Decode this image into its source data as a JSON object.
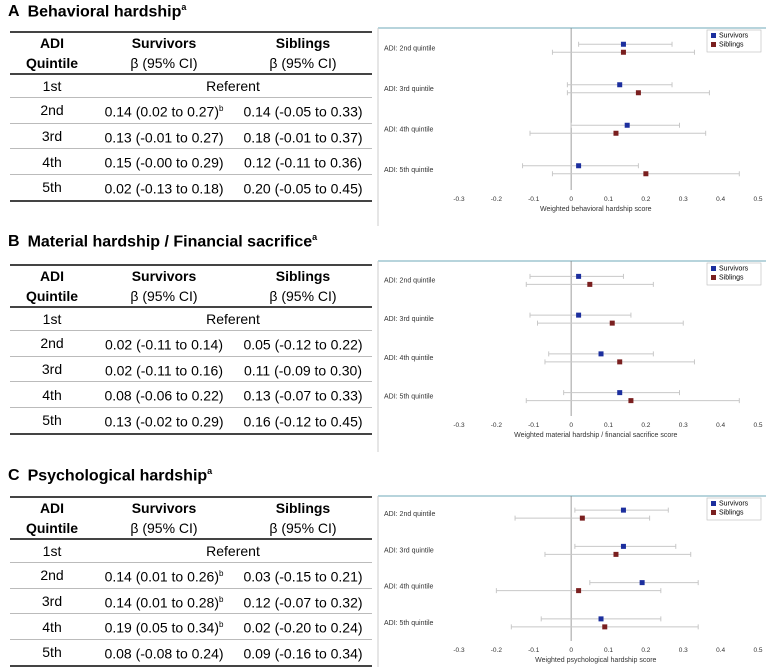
{
  "panels": [
    {
      "letter": "A",
      "title": "Behavioral hardship",
      "sup": "a",
      "table": {
        "col1": [
          "ADI",
          "Quintile"
        ],
        "col2": [
          "Survivors",
          "β (95% CI)"
        ],
        "col3": [
          "Siblings",
          "β (95% CI)"
        ],
        "referent_row": {
          "q": "1st",
          "text": "Referent"
        },
        "rows": [
          {
            "q": "2nd",
            "surv": "0.14 (0.02 to 0.27)",
            "surv_sup": "b",
            "sib": "0.14 (-0.05 to 0.33)",
            "sib_sup": ""
          },
          {
            "q": "3rd",
            "surv": "0.13 (-0.01 to 0.27)",
            "surv_sup": "",
            "sib": "0.18 (-0.01 to 0.37)",
            "sib_sup": ""
          },
          {
            "q": "4th",
            "surv": "0.15 (-0.00 to 0.29)",
            "surv_sup": "",
            "sib": "0.12 (-0.11 to 0.36)",
            "sib_sup": ""
          },
          {
            "q": "5th",
            "surv": "0.02 (-0.13 to 0.18)",
            "surv_sup": "",
            "sib": "0.20 (-0.05 to 0.45)",
            "sib_sup": ""
          }
        ]
      }
    },
    {
      "letter": "B",
      "title": "Material hardship / Financial sacrifice",
      "sup": "a",
      "table": {
        "col1": [
          "ADI",
          "Quintile"
        ],
        "col2": [
          "Survivors",
          "β (95% CI)"
        ],
        "col3": [
          "Siblings",
          "β (95% CI)"
        ],
        "referent_row": {
          "q": "1st",
          "text": "Referent"
        },
        "rows": [
          {
            "q": "2nd",
            "surv": "0.02 (-0.11 to 0.14)",
            "surv_sup": "",
            "sib": "0.05 (-0.12 to 0.22)",
            "sib_sup": ""
          },
          {
            "q": "3rd",
            "surv": "0.02 (-0.11 to 0.16)",
            "surv_sup": "",
            "sib": "0.11 (-0.09 to 0.30)",
            "sib_sup": ""
          },
          {
            "q": "4th",
            "surv": "0.08 (-0.06 to 0.22)",
            "surv_sup": "",
            "sib": "0.13 (-0.07 to 0.33)",
            "sib_sup": ""
          },
          {
            "q": "5th",
            "surv": "0.13 (-0.02 to 0.29)",
            "surv_sup": "",
            "sib": "0.16 (-0.12 to 0.45)",
            "sib_sup": ""
          }
        ]
      }
    },
    {
      "letter": "C",
      "title": "Psychological hardship",
      "sup": "a",
      "table": {
        "col1": [
          "ADI",
          "Quintile"
        ],
        "col2": [
          "Survivors",
          "β (95% CI)"
        ],
        "col3": [
          "Siblings",
          "β (95% CI)"
        ],
        "referent_row": {
          "q": "1st",
          "text": "Referent"
        },
        "rows": [
          {
            "q": "2nd",
            "surv": "0.14 (0.01 to 0.26)",
            "surv_sup": "b",
            "sib": "0.03 (-0.15 to 0.21)",
            "sib_sup": ""
          },
          {
            "q": "3rd",
            "surv": "0.14 (0.01 to 0.28)",
            "surv_sup": "b",
            "sib": "0.12 (-0.07 to 0.32)",
            "sib_sup": ""
          },
          {
            "q": "4th",
            "surv": "0.19 (0.05 to 0.34)",
            "surv_sup": "b",
            "sib": "0.02 (-0.20 to 0.24)",
            "sib_sup": ""
          },
          {
            "q": "5th",
            "surv": "0.08 (-0.08 to 0.24)",
            "surv_sup": "",
            "sib": "0.09 (-0.16 to 0.34)",
            "sib_sup": ""
          }
        ]
      }
    }
  ],
  "chart_data": [
    {
      "type": "scatter",
      "subtype": "forest",
      "panel": "A",
      "xlabel": "Weighted behavioral hardship score",
      "xlim": [
        -0.3,
        0.5
      ],
      "xticks": [
        "-0.3",
        "-0.2",
        "-0.1",
        "0",
        "0.1",
        "0.2",
        "0.3",
        "0.4",
        "0.5"
      ],
      "reference_line": 0,
      "categories": [
        "ADI: 2nd quintile",
        "ADI: 3rd quintile",
        "ADI: 4th quintile",
        "ADI: 5th quintile"
      ],
      "legend": "top-right",
      "series": [
        {
          "name": "Survivors",
          "color": "#1c2f9e",
          "est": [
            0.14,
            0.13,
            0.15,
            0.02
          ],
          "lo": [
            0.02,
            -0.01,
            -0.0,
            -0.13
          ],
          "hi": [
            0.27,
            0.27,
            0.29,
            0.18
          ]
        },
        {
          "name": "Siblings",
          "color": "#7a1f1f",
          "est": [
            0.14,
            0.18,
            0.12,
            0.2
          ],
          "lo": [
            -0.05,
            -0.01,
            -0.11,
            -0.05
          ],
          "hi": [
            0.33,
            0.37,
            0.36,
            0.45
          ]
        }
      ]
    },
    {
      "type": "scatter",
      "subtype": "forest",
      "panel": "B",
      "xlabel": "Weighted material hardship / financial sacrifice score",
      "xlim": [
        -0.3,
        0.5
      ],
      "xticks": [
        "-0.3",
        "-0.2",
        "-0.1",
        "0",
        "0.1",
        "0.2",
        "0.3",
        "0.4",
        "0.5"
      ],
      "reference_line": 0,
      "categories": [
        "ADI: 2nd quintile",
        "ADI: 3rd quintile",
        "ADI: 4th quintile",
        "ADI: 5th quintile"
      ],
      "legend": "top-right",
      "series": [
        {
          "name": "Survivors",
          "color": "#1c2f9e",
          "est": [
            0.02,
            0.02,
            0.08,
            0.13
          ],
          "lo": [
            -0.11,
            -0.11,
            -0.06,
            -0.02
          ],
          "hi": [
            0.14,
            0.16,
            0.22,
            0.29
          ]
        },
        {
          "name": "Siblings",
          "color": "#7a1f1f",
          "est": [
            0.05,
            0.11,
            0.13,
            0.16
          ],
          "lo": [
            -0.12,
            -0.09,
            -0.07,
            -0.12
          ],
          "hi": [
            0.22,
            0.3,
            0.33,
            0.45
          ]
        }
      ]
    },
    {
      "type": "scatter",
      "subtype": "forest",
      "panel": "C",
      "xlabel": "Weighted psychological hardship score",
      "xlim": [
        -0.3,
        0.5
      ],
      "xticks": [
        "-0.3",
        "-0.2",
        "-0.1",
        "0",
        "0.1",
        "0.2",
        "0.3",
        "0.4",
        "0.5"
      ],
      "reference_line": 0,
      "categories": [
        "ADI: 2nd quintile",
        "ADI: 3rd quintile",
        "ADI: 4th quintile",
        "ADI: 5th quintile"
      ],
      "legend": "top-right",
      "series": [
        {
          "name": "Survivors",
          "color": "#1c2f9e",
          "est": [
            0.14,
            0.14,
            0.19,
            0.08
          ],
          "lo": [
            0.01,
            0.01,
            0.05,
            -0.08
          ],
          "hi": [
            0.26,
            0.28,
            0.34,
            0.24
          ]
        },
        {
          "name": "Siblings",
          "color": "#7a1f1f",
          "est": [
            0.03,
            0.12,
            0.02,
            0.09
          ],
          "lo": [
            -0.15,
            -0.07,
            -0.2,
            -0.16
          ],
          "hi": [
            0.21,
            0.32,
            0.24,
            0.34
          ]
        }
      ]
    }
  ]
}
